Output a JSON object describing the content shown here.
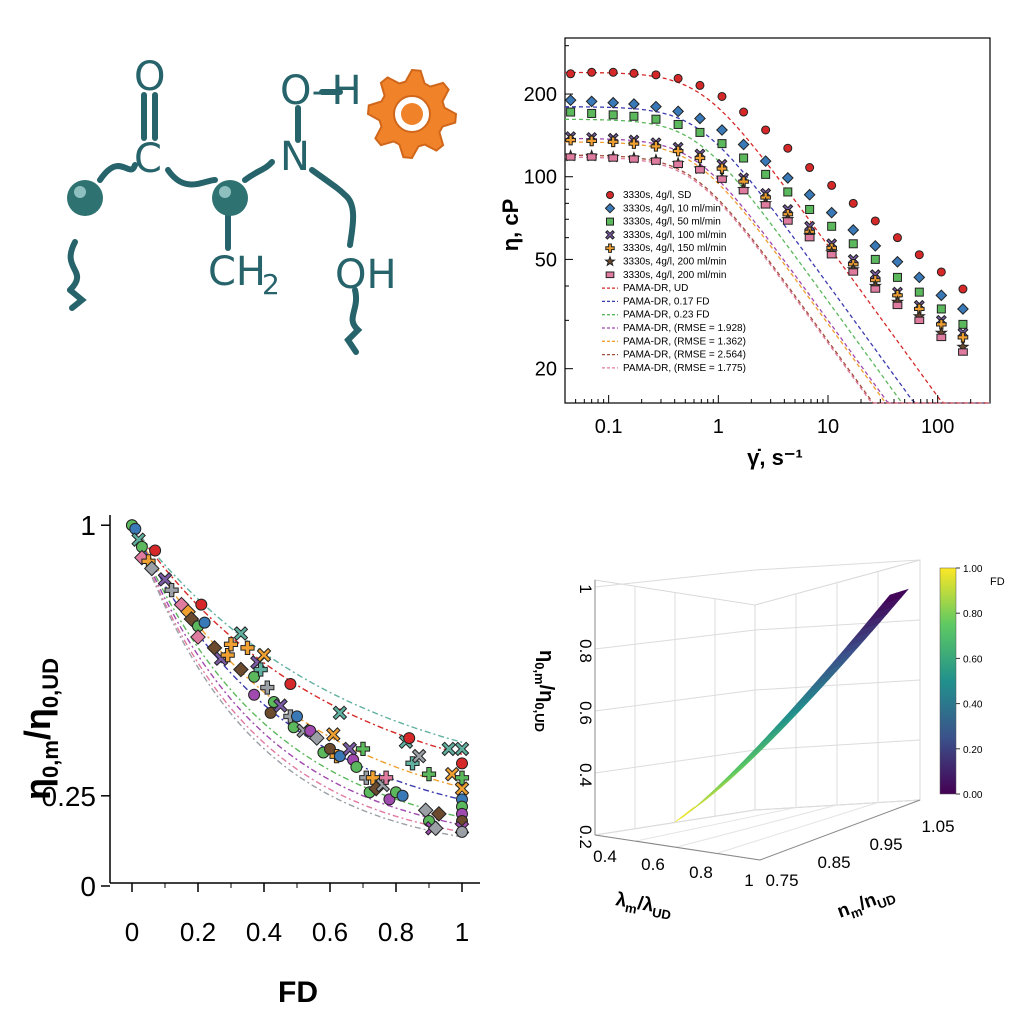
{
  "molecule": {
    "atoms": {
      "o_top": "O",
      "c": "C",
      "n": "N",
      "oh_top": "O–H",
      "ch2": "CH",
      "ch2_sub": "2",
      "oh_bottom": "OH"
    },
    "colors": {
      "bond": "#26636a",
      "bead": "#2e7272",
      "gear": "#f0832a"
    }
  },
  "chart_data": [
    {
      "id": "flow_curves",
      "type": "scatter",
      "title": "",
      "xlabel": "γ̇, s⁻¹",
      "ylabel": "η, cP",
      "xscale": "log",
      "yscale": "log",
      "xlim": [
        0.04,
        300
      ],
      "ylim": [
        15,
        320
      ],
      "xticks": [
        {
          "v": 0.1,
          "label": "0.1"
        },
        {
          "v": 1,
          "label": "1"
        },
        {
          "v": 10,
          "label": "10"
        },
        {
          "v": 100,
          "label": "100"
        }
      ],
      "yticks": [
        {
          "v": 20,
          "label": "20"
        },
        {
          "v": 50,
          "label": "50"
        },
        {
          "v": 100,
          "label": "100"
        },
        {
          "v": 200,
          "label": "200"
        }
      ],
      "x": [
        0.045,
        0.07,
        0.11,
        0.17,
        0.27,
        0.43,
        0.68,
        1.08,
        1.7,
        2.7,
        4.3,
        6.8,
        10.8,
        17,
        27,
        43,
        68,
        108,
        170
      ],
      "series": [
        {
          "name": "3330s, 4g/l, SD",
          "marker": "circle",
          "color": "#d62828",
          "values": [
            237,
            240,
            240,
            238,
            235,
            228,
            215,
            196,
            172,
            148,
            127,
            108,
            93,
            80,
            69,
            60,
            52,
            45,
            39
          ]
        },
        {
          "name": "3330s, 4g/l, 10 ml/min",
          "marker": "diamond",
          "color": "#3a79b8",
          "values": [
            190,
            188,
            186,
            184,
            180,
            173,
            163,
            148,
            131,
            114,
            99,
            86,
            74,
            64,
            56,
            49,
            43,
            37,
            33
          ]
        },
        {
          "name": "3330s, 4g/l, 50 ml/min",
          "marker": "square",
          "color": "#5cb85c",
          "values": [
            172,
            170,
            168,
            166,
            162,
            155,
            145,
            132,
            117,
            102,
            88,
            76,
            66,
            57,
            50,
            43,
            38,
            33,
            29
          ]
        },
        {
          "name": "3330s, 4g/l, 100 ml/min",
          "marker": "x",
          "color": "#7b5ba6",
          "values": [
            140,
            139,
            138,
            136,
            133,
            128,
            121,
            111,
            99,
            87,
            76,
            66,
            57,
            50,
            44,
            38,
            34,
            30,
            27
          ]
        },
        {
          "name": "3330s, 4g/l, 150 ml/min",
          "marker": "plus",
          "color": "#f0a030",
          "values": [
            136,
            135,
            134,
            132,
            129,
            124,
            117,
            107,
            96,
            84,
            73,
            63,
            55,
            48,
            42,
            37,
            33,
            29,
            26
          ]
        },
        {
          "name": "3330s, 4g/l, 200 ml/min",
          "marker": "star",
          "color": "#6b4a2e",
          "values": [
            119,
            119,
            118,
            117,
            115,
            112,
            107,
            99,
            90,
            80,
            70,
            61,
            53,
            46,
            40,
            35,
            31,
            27,
            24
          ]
        },
        {
          "name": "3330s, 4g/l, 200 ml/min",
          "marker": "halfsquare",
          "color": "#e07ba0",
          "values": [
            118,
            118,
            117,
            116,
            114,
            111,
            106,
            98,
            89,
            79,
            69,
            60,
            52,
            45,
            39,
            34,
            30,
            26,
            23
          ]
        }
      ],
      "fits": [
        {
          "name": "PAMA-DR, UD",
          "color": "#d62828",
          "eta0": 240,
          "lambda": 1.4,
          "n": 0.45
        },
        {
          "name": "PAMA-DR, 0.17 FD",
          "color": "#3a3ab0",
          "eta0": 180,
          "lambda": 1.5,
          "n": 0.45
        },
        {
          "name": "PAMA-DR, 0.23 FD",
          "color": "#5cb85c",
          "eta0": 162,
          "lambda": 1.6,
          "n": 0.45
        },
        {
          "name": "PAMA-DR, (RMSE = 1.928)",
          "color": "#a04ab0",
          "eta0": 138,
          "lambda": 1.6,
          "n": 0.45
        },
        {
          "name": "PAMA-DR, (RMSE = 1.362)",
          "color": "#f0a030",
          "eta0": 134,
          "lambda": 1.6,
          "n": 0.45
        },
        {
          "name": "PAMA-DR, (RMSE = 2.564)",
          "color": "#a0503a",
          "eta0": 120,
          "lambda": 1.7,
          "n": 0.45
        },
        {
          "name": "PAMA-DR, (RMSE = 1.775)",
          "color": "#e07ba0",
          "eta0": 118,
          "lambda": 1.7,
          "n": 0.45
        }
      ]
    },
    {
      "id": "eta0_vs_fd",
      "type": "scatter",
      "title": "",
      "xlabel": "FD",
      "ylabel_main": "η",
      "ylabel_sub": "0,m",
      "ylabel_slash": "/η",
      "ylabel_sub2": "0,UD",
      "xlim": [
        -0.05,
        1.05
      ],
      "ylim": [
        0,
        1.02
      ],
      "xticks": [
        {
          "v": 0,
          "label": "0"
        },
        {
          "v": 0.2,
          "label": "0.2"
        },
        {
          "v": 0.4,
          "label": "0.4"
        },
        {
          "v": 0.6,
          "label": "0.6"
        },
        {
          "v": 0.8,
          "label": "0.8"
        },
        {
          "v": 1,
          "label": "1"
        }
      ],
      "yticks": [
        {
          "v": 0,
          "label": "0"
        },
        {
          "v": 0.25,
          "label": "0.25"
        },
        {
          "v": 1,
          "label": "1"
        }
      ],
      "fit_curves": [
        {
          "color": "#d62828",
          "k": 1.05,
          "a": 0.22
        },
        {
          "color": "#60b0a0",
          "k": 0.98,
          "a": 0.24
        },
        {
          "color": "#f0a030",
          "k": 1.25,
          "a": 0.16
        },
        {
          "color": "#3a3ab0",
          "k": 1.35,
          "a": 0.14
        },
        {
          "color": "#5cb85c",
          "k": 1.5,
          "a": 0.11
        },
        {
          "color": "#a04ab0",
          "k": 1.6,
          "a": 0.1
        },
        {
          "color": "#e07ba0",
          "k": 1.7,
          "a": 0.09
        },
        {
          "color": "#9aa0a6",
          "k": 1.75,
          "a": 0.08
        }
      ],
      "points": [
        {
          "x": 0,
          "y": 1,
          "m": "circle",
          "c": "#d62828"
        },
        {
          "x": 0,
          "y": 1,
          "m": "circle",
          "c": "#5cb85c"
        },
        {
          "x": 0.01,
          "y": 0.99,
          "m": "circle",
          "c": "#3a79b8"
        },
        {
          "x": 0.02,
          "y": 0.96,
          "m": "x",
          "c": "#60b0a0"
        },
        {
          "x": 0.03,
          "y": 0.94,
          "m": "circle",
          "c": "#5cb85c"
        },
        {
          "x": 0.03,
          "y": 0.91,
          "m": "diamond",
          "c": "#e07ba0"
        },
        {
          "x": 0.05,
          "y": 0.9,
          "m": "plus",
          "c": "#f0a030"
        },
        {
          "x": 0.06,
          "y": 0.88,
          "m": "diamond",
          "c": "#9aa0a6"
        },
        {
          "x": 0.07,
          "y": 0.93,
          "m": "circle",
          "c": "#d62828"
        },
        {
          "x": 0.1,
          "y": 0.85,
          "m": "x",
          "c": "#7b5ba6"
        },
        {
          "x": 0.12,
          "y": 0.82,
          "m": "plus",
          "c": "#9aa0a6"
        },
        {
          "x": 0.15,
          "y": 0.78,
          "m": "diamond",
          "c": "#e07ba0"
        },
        {
          "x": 0.17,
          "y": 0.76,
          "m": "diamond",
          "c": "#f0a030"
        },
        {
          "x": 0.18,
          "y": 0.74,
          "m": "diamond",
          "c": "#6b4a2e"
        },
        {
          "x": 0.2,
          "y": 0.72,
          "m": "circle",
          "c": "#5cb85c"
        },
        {
          "x": 0.2,
          "y": 0.69,
          "m": "diamond",
          "c": "#e07ba0"
        },
        {
          "x": 0.21,
          "y": 0.78,
          "m": "circle",
          "c": "#d62828"
        },
        {
          "x": 0.22,
          "y": 0.73,
          "m": "circle",
          "c": "#3a79b8"
        },
        {
          "x": 0.25,
          "y": 0.66,
          "m": "diamond",
          "c": "#6b4a2e"
        },
        {
          "x": 0.27,
          "y": 0.63,
          "m": "x",
          "c": "#7b5ba6"
        },
        {
          "x": 0.29,
          "y": 0.64,
          "m": "plus",
          "c": "#f0a030"
        },
        {
          "x": 0.3,
          "y": 0.67,
          "m": "plus",
          "c": "#f0a030"
        },
        {
          "x": 0.33,
          "y": 0.7,
          "m": "x",
          "c": "#60b0a0"
        },
        {
          "x": 0.33,
          "y": 0.6,
          "m": "diamond",
          "c": "#6b4a2e"
        },
        {
          "x": 0.35,
          "y": 0.66,
          "m": "plus",
          "c": "#f0a030"
        },
        {
          "x": 0.37,
          "y": 0.58,
          "m": "circle",
          "c": "#5cb85c"
        },
        {
          "x": 0.37,
          "y": 0.53,
          "m": "circle",
          "c": "#a04ab0"
        },
        {
          "x": 0.38,
          "y": 0.62,
          "m": "x",
          "c": "#7b5ba6"
        },
        {
          "x": 0.39,
          "y": 0.6,
          "m": "plus",
          "c": "#60b0a0"
        },
        {
          "x": 0.4,
          "y": 0.64,
          "m": "x",
          "c": "#f0a030"
        },
        {
          "x": 0.41,
          "y": 0.55,
          "m": "plus",
          "c": "#9aa0a6"
        },
        {
          "x": 0.42,
          "y": 0.48,
          "m": "circle",
          "c": "#6b4a2e"
        },
        {
          "x": 0.43,
          "y": 0.51,
          "m": "circle",
          "c": "#5cb85c"
        },
        {
          "x": 0.45,
          "y": 0.5,
          "m": "x",
          "c": "#7b5ba6"
        },
        {
          "x": 0.48,
          "y": 0.47,
          "m": "plus",
          "c": "#9aa0a6"
        },
        {
          "x": 0.48,
          "y": 0.56,
          "m": "circle",
          "c": "#d62828"
        },
        {
          "x": 0.49,
          "y": 0.44,
          "m": "circle",
          "c": "#5cb85c"
        },
        {
          "x": 0.5,
          "y": 0.47,
          "m": "circle",
          "c": "#3a79b8"
        },
        {
          "x": 0.52,
          "y": 0.43,
          "m": "x",
          "c": "#9aa0a6"
        },
        {
          "x": 0.54,
          "y": 0.43,
          "m": "circle",
          "c": "#a04ab0"
        },
        {
          "x": 0.56,
          "y": 0.41,
          "m": "diamond",
          "c": "#9aa0a6"
        },
        {
          "x": 0.58,
          "y": 0.37,
          "m": "circle",
          "c": "#5cb85c"
        },
        {
          "x": 0.6,
          "y": 0.38,
          "m": "circle",
          "c": "#6b4a2e"
        },
        {
          "x": 0.61,
          "y": 0.42,
          "m": "x",
          "c": "#f0a030"
        },
        {
          "x": 0.62,
          "y": 0.36,
          "m": "plus",
          "c": "#f0a030"
        },
        {
          "x": 0.63,
          "y": 0.36,
          "m": "circle",
          "c": "#3a79b8"
        },
        {
          "x": 0.63,
          "y": 0.48,
          "m": "x",
          "c": "#60b0a0"
        },
        {
          "x": 0.66,
          "y": 0.38,
          "m": "x",
          "c": "#7b5ba6"
        },
        {
          "x": 0.67,
          "y": 0.35,
          "m": "circle",
          "c": "#a04ab0"
        },
        {
          "x": 0.68,
          "y": 0.33,
          "m": "circle",
          "c": "#5cb85c"
        },
        {
          "x": 0.7,
          "y": 0.38,
          "m": "plus",
          "c": "#5cb85c"
        },
        {
          "x": 0.71,
          "y": 0.3,
          "m": "plus",
          "c": "#9aa0a6"
        },
        {
          "x": 0.72,
          "y": 0.26,
          "m": "circle",
          "c": "#5cb85c"
        },
        {
          "x": 0.73,
          "y": 0.3,
          "m": "plus",
          "c": "#f0a030"
        },
        {
          "x": 0.74,
          "y": 0.27,
          "m": "diamond",
          "c": "#6b4a2e"
        },
        {
          "x": 0.76,
          "y": 0.28,
          "m": "x",
          "c": "#9aa0a6"
        },
        {
          "x": 0.77,
          "y": 0.3,
          "m": "plus",
          "c": "#e07ba0"
        },
        {
          "x": 0.78,
          "y": 0.24,
          "m": "circle",
          "c": "#a04ab0"
        },
        {
          "x": 0.8,
          "y": 0.26,
          "m": "circle",
          "c": "#5cb85c"
        },
        {
          "x": 0.82,
          "y": 0.25,
          "m": "circle",
          "c": "#3a79b8"
        },
        {
          "x": 0.83,
          "y": 0.4,
          "m": "x",
          "c": "#60b0a0"
        },
        {
          "x": 0.84,
          "y": 0.41,
          "m": "circle",
          "c": "#d62828"
        },
        {
          "x": 0.85,
          "y": 0.34,
          "m": "plus",
          "c": "#60b0a0"
        },
        {
          "x": 0.87,
          "y": 0.36,
          "m": "x",
          "c": "#9aa0a6"
        },
        {
          "x": 0.89,
          "y": 0.21,
          "m": "diamond",
          "c": "#9aa0a6"
        },
        {
          "x": 0.9,
          "y": 0.31,
          "m": "plus",
          "c": "#5cb85c"
        },
        {
          "x": 0.9,
          "y": 0.18,
          "m": "circle",
          "c": "#5cb85c"
        },
        {
          "x": 0.91,
          "y": 0.16,
          "m": "x",
          "c": "#a04ab0"
        },
        {
          "x": 0.92,
          "y": 0.16,
          "m": "diamond",
          "c": "#9aa0a6"
        },
        {
          "x": 0.93,
          "y": 0.2,
          "m": "diamond",
          "c": "#6b4a2e"
        },
        {
          "x": 0.96,
          "y": 0.38,
          "m": "x",
          "c": "#60b0a0"
        },
        {
          "x": 0.97,
          "y": 0.31,
          "m": "x",
          "c": "#f0a030"
        },
        {
          "x": 1,
          "y": 0.38,
          "m": "x",
          "c": "#60b0a0"
        },
        {
          "x": 1,
          "y": 0.34,
          "m": "circle",
          "c": "#d62828"
        },
        {
          "x": 1,
          "y": 0.3,
          "m": "plus",
          "c": "#5cb85c"
        },
        {
          "x": 1,
          "y": 0.27,
          "m": "x",
          "c": "#f0a030"
        },
        {
          "x": 1,
          "y": 0.24,
          "m": "circle",
          "c": "#3a79b8"
        },
        {
          "x": 1,
          "y": 0.22,
          "m": "circle",
          "c": "#5cb85c"
        },
        {
          "x": 1,
          "y": 0.2,
          "m": "circle",
          "c": "#a04ab0"
        },
        {
          "x": 1,
          "y": 0.18,
          "m": "circle",
          "c": "#6b4a2e"
        },
        {
          "x": 1,
          "y": 0.16,
          "m": "x",
          "c": "#a04ab0"
        },
        {
          "x": 1,
          "y": 0.15,
          "m": "circle",
          "c": "#9aa0a6"
        }
      ]
    },
    {
      "id": "surface_3d",
      "type": "surface",
      "zlabel_main": "η",
      "zlabel_sub": "0,m",
      "zlabel_slash": "/η",
      "zlabel_sub2": "0,UD",
      "xlabel_main": "λ",
      "xlabel_sub": "m",
      "xlabel_slash": "/λ",
      "xlabel_sub2": "UD",
      "ylabel_main": "n",
      "ylabel_sub": "m",
      "ylabel_slash": "/n",
      "ylabel_sub2": "UD",
      "zticks": [
        {
          "v": 0.2,
          "label": "0.2"
        },
        {
          "v": 0.4,
          "label": "0.4"
        },
        {
          "v": 0.6,
          "label": "0.6"
        },
        {
          "v": 0.8,
          "label": "0.8"
        },
        {
          "v": 1,
          "label": "1"
        }
      ],
      "xticks": [
        {
          "v": 0.4,
          "label": "0.4"
        },
        {
          "v": 0.6,
          "label": "0.6"
        },
        {
          "v": 0.8,
          "label": "0.8"
        },
        {
          "v": 1,
          "label": "1"
        }
      ],
      "yticks": [
        {
          "v": 0.75,
          "label": "0.75"
        },
        {
          "v": 0.85,
          "label": "0.85"
        },
        {
          "v": 0.95,
          "label": "0.95"
        },
        {
          "v": 1.05,
          "label": "1.05"
        }
      ],
      "colorbar": {
        "label": "FD",
        "min": 0,
        "max": 1,
        "ticks": [
          {
            "v": 0,
            "label": "0.00"
          },
          {
            "v": 0.2,
            "label": "0.20"
          },
          {
            "v": 0.4,
            "label": "0.40"
          },
          {
            "v": 0.6,
            "label": "0.60"
          },
          {
            "v": 0.8,
            "label": "0.80"
          },
          {
            "v": 1,
            "label": "1.00"
          }
        ]
      },
      "colormap": [
        "#440154",
        "#3b528b",
        "#21918c",
        "#5ec962",
        "#fde725"
      ]
    }
  ]
}
